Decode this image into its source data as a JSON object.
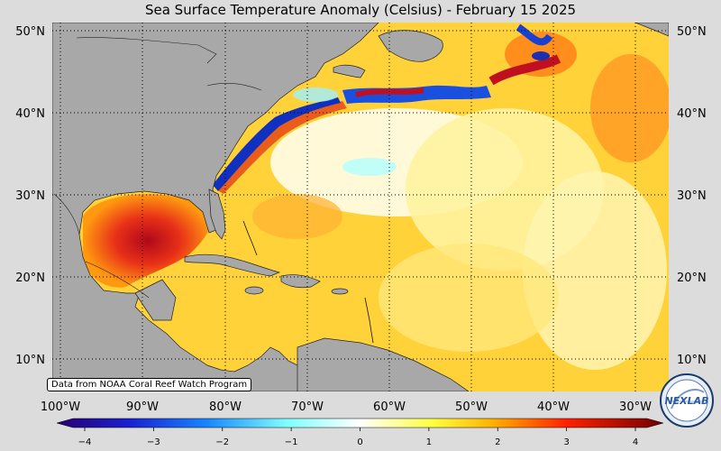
{
  "title": "Sea Surface Temperature Anomaly (Celsius) - February 15 2025",
  "credit": "Data from NOAA Coral Reef Watch Program",
  "lat_labels": [
    "50°N",
    "40°N",
    "30°N",
    "20°N",
    "10°N"
  ],
  "lon_labels": [
    "100°W",
    "90°W",
    "80°W",
    "70°W",
    "60°W",
    "50°W",
    "40°W",
    "30°W"
  ],
  "colorbar": {
    "ticks": [
      "−4",
      "−3",
      "−2",
      "−1",
      "0",
      "1",
      "2",
      "3",
      "4"
    ],
    "range": [
      -4,
      4
    ]
  },
  "logo_text": "NEXLAB",
  "colors": {
    "land": "#a8a8a8",
    "ocean_base": "#ffe03a",
    "warm": "#e8551a",
    "hot": "#c0101a",
    "cold": "#1030c0",
    "neutral": "#ffffff"
  }
}
